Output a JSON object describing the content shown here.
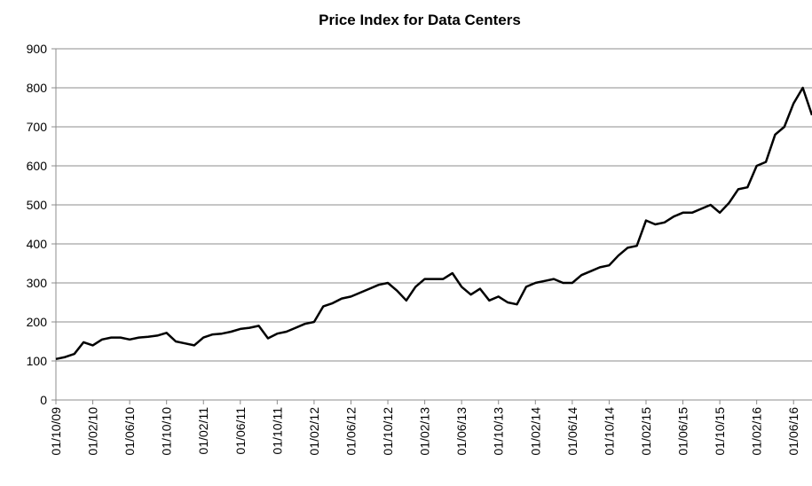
{
  "chart_data": {
    "type": "line",
    "title": "Price Index for Data Centers",
    "x": [
      "01/10/09",
      "01/11/09",
      "01/12/09",
      "01/01/10",
      "01/02/10",
      "01/03/10",
      "01/04/10",
      "01/05/10",
      "01/06/10",
      "01/07/10",
      "01/08/10",
      "01/09/10",
      "01/10/10",
      "01/11/10",
      "01/12/10",
      "01/01/11",
      "01/02/11",
      "01/03/11",
      "01/04/11",
      "01/05/11",
      "01/06/11",
      "01/07/11",
      "01/08/11",
      "01/09/11",
      "01/10/11",
      "01/11/11",
      "01/12/11",
      "01/01/12",
      "01/02/12",
      "01/03/12",
      "01/04/12",
      "01/05/12",
      "01/06/12",
      "01/07/12",
      "01/08/12",
      "01/09/12",
      "01/10/12",
      "01/11/12",
      "01/12/12",
      "01/01/13",
      "01/02/13",
      "01/03/13",
      "01/04/13",
      "01/05/13",
      "01/06/13",
      "01/07/13",
      "01/08/13",
      "01/09/13",
      "01/10/13",
      "01/11/13",
      "01/12/13",
      "01/01/14",
      "01/02/14",
      "01/03/14",
      "01/04/14",
      "01/05/14",
      "01/06/14",
      "01/07/14",
      "01/08/14",
      "01/09/14",
      "01/10/14",
      "01/11/14",
      "01/12/14",
      "01/01/15",
      "01/02/15",
      "01/03/15",
      "01/04/15",
      "01/05/15",
      "01/06/15",
      "01/07/15",
      "01/08/15",
      "01/09/15",
      "01/10/15",
      "01/11/15",
      "01/12/15",
      "01/01/16",
      "01/02/16",
      "01/03/16",
      "01/04/16",
      "01/05/16",
      "01/06/16",
      "01/07/16",
      "01/08/16"
    ],
    "series": [
      {
        "color": "#000000",
        "values": [
          105,
          110,
          118,
          148,
          140,
          155,
          160,
          160,
          155,
          160,
          162,
          165,
          172,
          150,
          145,
          140,
          160,
          168,
          170,
          175,
          182,
          185,
          190,
          158,
          170,
          175,
          185,
          195,
          200,
          240,
          248,
          260,
          265,
          275,
          285,
          295,
          300,
          280,
          255,
          290,
          310,
          310,
          310,
          325,
          290,
          270,
          285,
          255,
          265,
          250,
          245,
          290,
          300,
          305,
          310,
          300,
          300,
          320,
          330,
          340,
          345,
          370,
          390,
          395,
          460,
          450,
          455,
          470,
          480,
          480,
          490,
          500,
          480,
          505,
          540,
          545,
          600,
          610,
          680,
          700,
          760,
          800,
          730
        ]
      }
    ],
    "xlim": [
      "01/10/09",
      "01/08/16"
    ],
    "xticks": [
      "01/10/09",
      "01/02/10",
      "01/06/10",
      "01/10/10",
      "01/02/11",
      "01/06/11",
      "01/10/11",
      "01/02/12",
      "01/06/12",
      "01/10/12",
      "01/02/13",
      "01/06/13",
      "01/10/13",
      "01/02/14",
      "01/06/14",
      "01/10/14",
      "01/02/15",
      "01/06/15",
      "01/10/15",
      "01/02/16",
      "01/06/16"
    ],
    "ylim": [
      0,
      900
    ],
    "yticks": [
      0,
      100,
      200,
      300,
      400,
      500,
      600,
      700,
      800,
      900
    ],
    "grid": true
  }
}
